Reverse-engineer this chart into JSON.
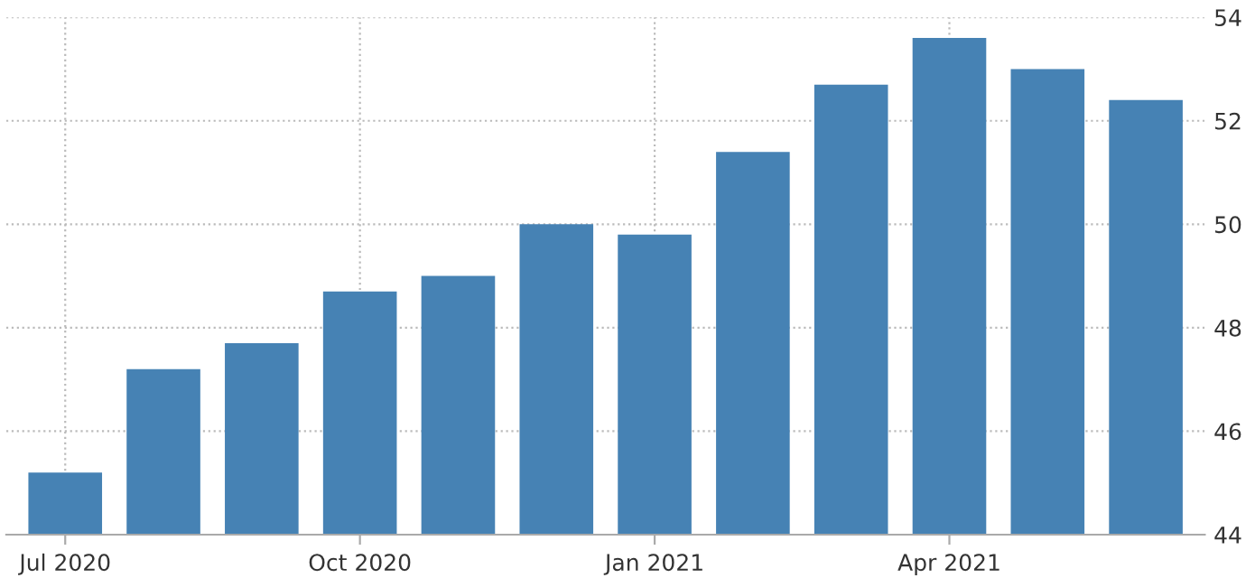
{
  "chart_data": {
    "type": "bar",
    "categories": [
      "Jul 2020",
      null,
      null,
      "Oct 2020",
      null,
      null,
      "Jan 2021",
      null,
      null,
      "Apr 2021",
      null,
      null
    ],
    "values": [
      45.2,
      47.2,
      47.7,
      48.7,
      49.0,
      50.0,
      49.8,
      51.4,
      52.7,
      53.6,
      53.0,
      52.4
    ],
    "color": "#4682b4",
    "ylim": [
      44,
      54
    ],
    "yticks": [
      44,
      46,
      48,
      50,
      52,
      54
    ],
    "grid": true,
    "legend": false
  }
}
